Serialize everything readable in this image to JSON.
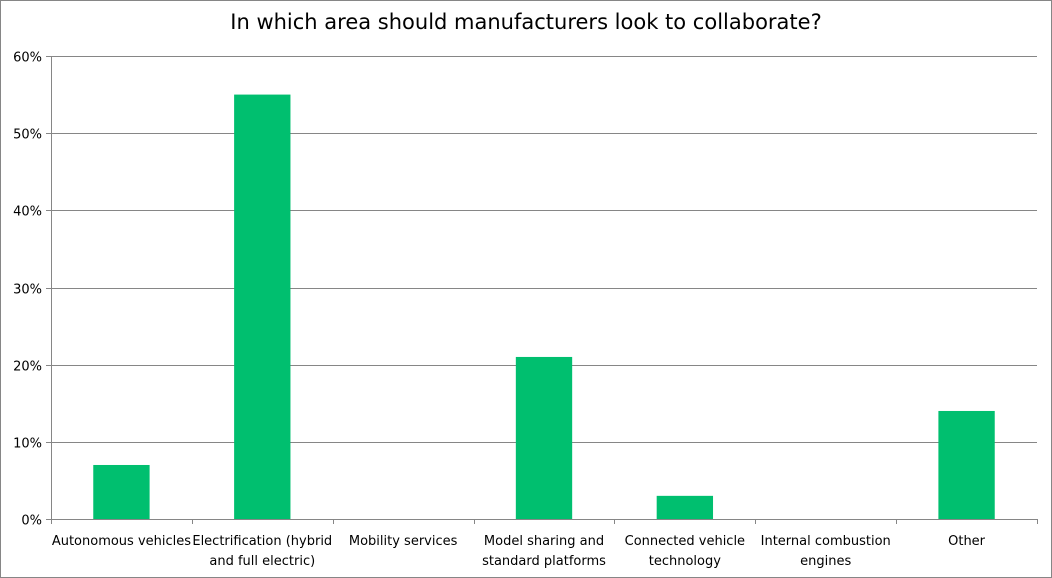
{
  "chart_data": {
    "type": "bar",
    "title": "In which area should manufacturers look to collaborate?",
    "categories": [
      [
        "Autonomous vehicles"
      ],
      [
        "Electrification (hybrid",
        "and full electric)"
      ],
      [
        "Mobility services"
      ],
      [
        "Model sharing and",
        "standard platforms"
      ],
      [
        "Connected vehicle",
        "technology"
      ],
      [
        "Internal combustion",
        "engines"
      ],
      [
        "Other"
      ]
    ],
    "values": [
      7,
      55,
      0,
      21,
      3,
      0,
      14
    ],
    "unit": "%",
    "ylim": [
      0,
      60
    ],
    "yticks": [
      "0%",
      "10%",
      "20%",
      "30%",
      "40%",
      "50%",
      "60%"
    ],
    "grid": true,
    "bar_color": "#00BF6F",
    "xlabel": "",
    "ylabel": ""
  }
}
